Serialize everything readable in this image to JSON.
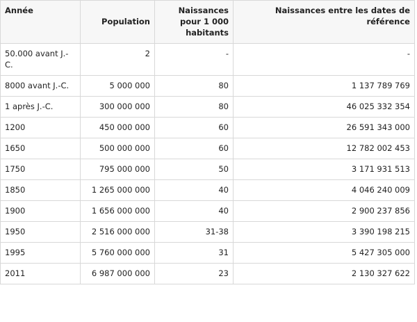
{
  "table": {
    "header": [
      "Année",
      "Population",
      "Naissances pour 1 000 habitants",
      "Naissances entre les dates de référence"
    ],
    "rows": [
      [
        "50.000 avant J.-C.",
        "2",
        "-",
        "-"
      ],
      [
        "8000 avant J.-C.",
        "5 000 000",
        "80",
        "1 137 789 769"
      ],
      [
        "1 après J.-C.",
        "300 000 000",
        "80",
        "46 025 332 354"
      ],
      [
        "1200",
        "450 000 000",
        "60",
        "26 591 343 000"
      ],
      [
        "1650",
        "500 000 000",
        "60",
        "12 782 002 453"
      ],
      [
        "1750",
        "795 000 000",
        "50",
        "3 171 931 513"
      ],
      [
        "1850",
        "1 265 000 000",
        "40",
        "4 046 240 009"
      ],
      [
        "1900",
        "1 656 000 000",
        "40",
        "2 900 237 856"
      ],
      [
        "1950",
        "2 516 000 000",
        "31-38",
        "3 390 198 215"
      ],
      [
        "1995",
        "5 760 000 000",
        "31",
        "5 427 305 000"
      ],
      [
        "2011",
        "6 987 000 000",
        "23",
        "2 130 327 622"
      ]
    ]
  }
}
